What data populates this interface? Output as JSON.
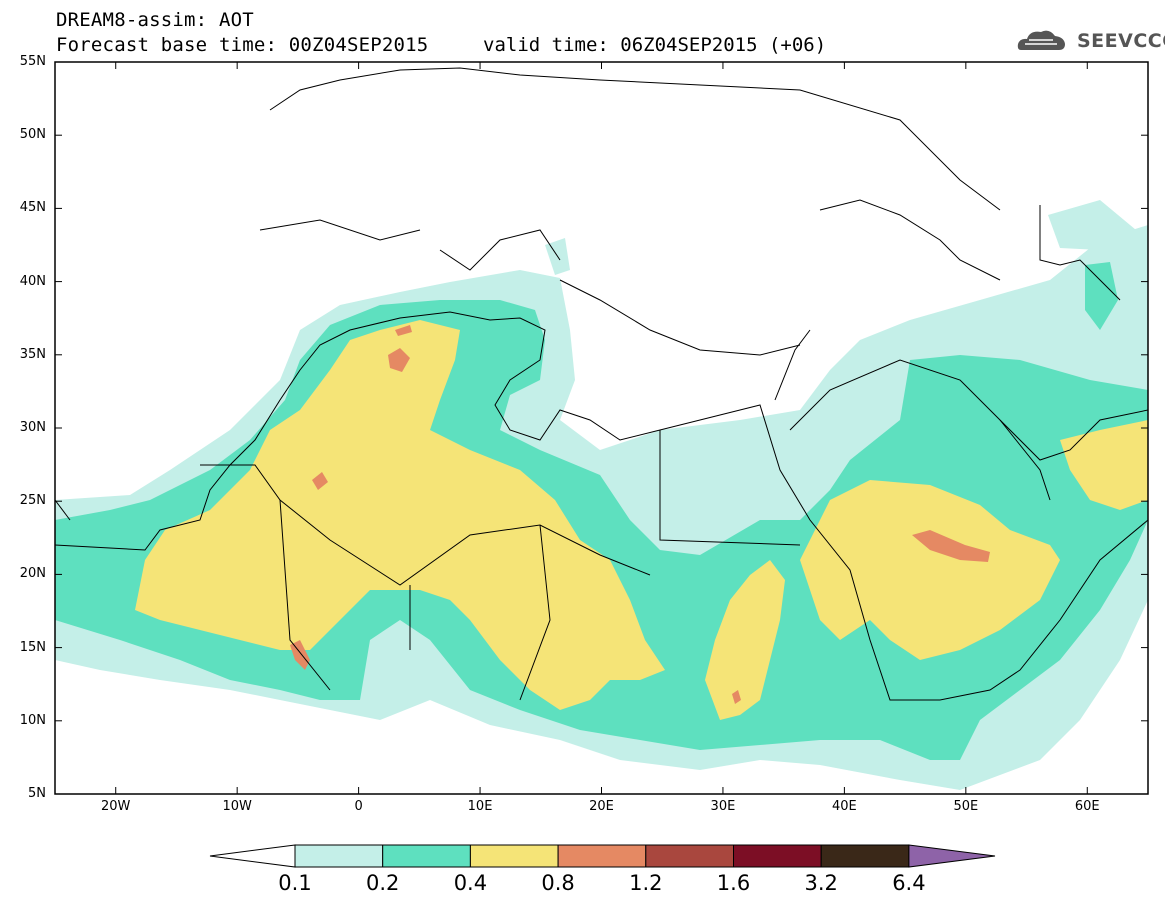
{
  "header": {
    "title_line1": "DREAM8-assim: AOT",
    "title_line2": "Forecast base time: 00Z04SEP2015",
    "valid_time": "valid time: 06Z04SEP2015 (+06)",
    "logo_text": "SEEVCCC"
  },
  "map": {
    "lon_range": [
      -25,
      65
    ],
    "lat_range": [
      5,
      55
    ],
    "lat_ticks": [
      "55N",
      "50N",
      "45N",
      "40N",
      "35N",
      "30N",
      "25N",
      "20N",
      "15N",
      "10N",
      "5N"
    ],
    "lon_ticks": [
      "20W",
      "10W",
      "0",
      "10E",
      "20E",
      "30E",
      "40E",
      "50E",
      "60E"
    ]
  },
  "colorbar": {
    "levels": [
      "0.1",
      "0.2",
      "0.4",
      "0.8",
      "1.2",
      "1.6",
      "3.2",
      "6.4"
    ],
    "colors": [
      "#ffffff",
      "#c4efe8",
      "#5ee0bf",
      "#f5e477",
      "#e58963",
      "#a9473e",
      "#7c0e25",
      "#3a2818",
      "#8e63a8"
    ]
  },
  "colors": {
    "aot_0_1": "#c4efe8",
    "aot_0_2": "#5ee0bf",
    "aot_0_4": "#f5e477",
    "aot_0_8": "#e58963"
  }
}
